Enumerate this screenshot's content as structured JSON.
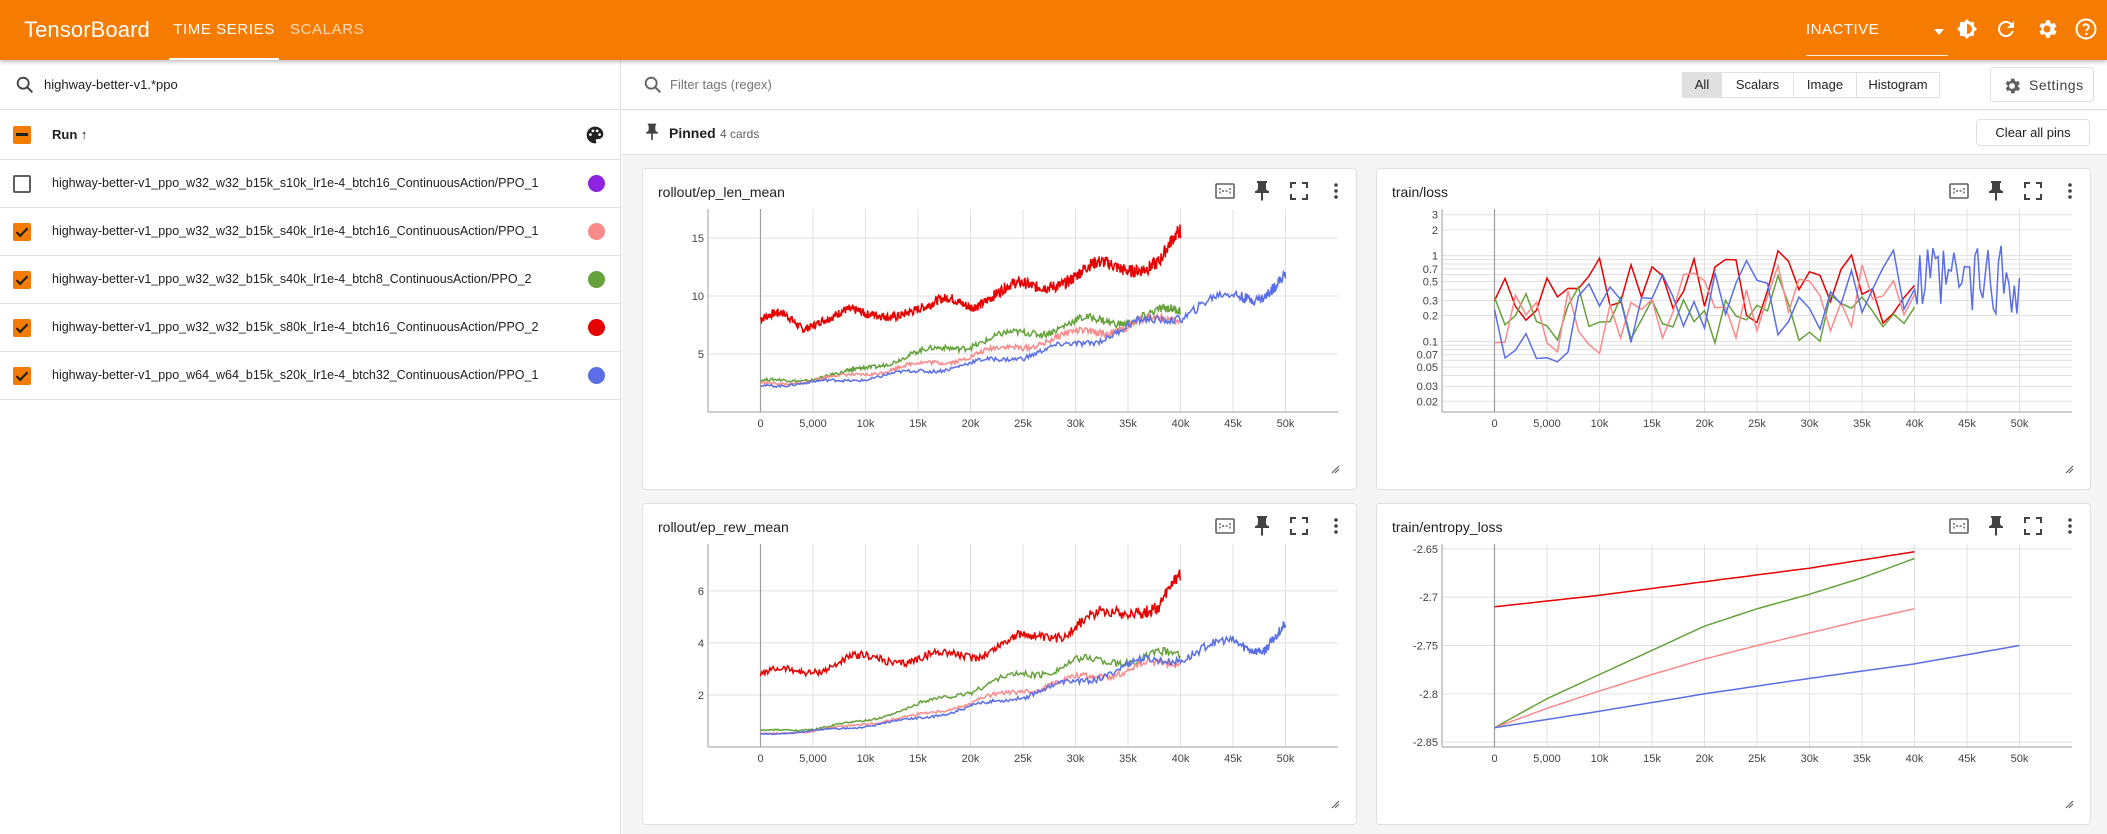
{
  "app": {
    "title": "TensorBoard"
  },
  "nav": {
    "tabs": [
      {
        "label": "TIME SERIES",
        "active": true
      },
      {
        "label": "SCALARS",
        "active": false
      }
    ]
  },
  "topbar": {
    "status_label": "INACTIVE",
    "icons": [
      "dark-mode-icon",
      "refresh-icon",
      "settings-gear-icon",
      "help-icon"
    ]
  },
  "runs_panel": {
    "filter_value": "highway-better-v1.*ppo",
    "header_label": "Run ↑",
    "runs": [
      {
        "name": "highway-better-v1_ppo_w32_w32_b15k_s10k_lr1e-4_btch16_ContinuousAction/PPO_1",
        "checked": false,
        "color": "#8e24e0"
      },
      {
        "name": "highway-better-v1_ppo_w32_w32_b15k_s40k_lr1e-4_btch16_ContinuousAction/PPO_1",
        "checked": true,
        "color": "#f88a8a"
      },
      {
        "name": "highway-better-v1_ppo_w32_w32_b15k_s40k_lr1e-4_btch8_ContinuousAction/PPO_2",
        "checked": true,
        "color": "#66a23c"
      },
      {
        "name": "highway-better-v1_ppo_w32_w32_b15k_s80k_lr1e-4_btch16_ContinuousAction/PPO_2",
        "checked": true,
        "color": "#e60000"
      },
      {
        "name": "highway-better-v1_ppo_w64_w64_b15k_s20k_lr1e-4_btch32_ContinuousAction/PPO_1",
        "checked": true,
        "color": "#5a6ee6"
      }
    ]
  },
  "filter": {
    "placeholder": "Filter tags (regex)",
    "types": [
      "All",
      "Scalars",
      "Image",
      "Histogram"
    ],
    "selected": "All",
    "settings_label": "Settings"
  },
  "pinned": {
    "title": "Pinned",
    "count_label": "4 cards",
    "clear_label": "Clear all pins"
  },
  "chart_data": [
    {
      "type": "line",
      "title": "rollout/ep_len_mean",
      "x_ticks": [
        "0",
        "5,000",
        "10k",
        "15k",
        "20k",
        "25k",
        "30k",
        "35k",
        "40k",
        "45k",
        "50k"
      ],
      "y_ticks": [
        "5",
        "10",
        "15"
      ],
      "ylim": [
        0,
        17.5
      ],
      "xlim": [
        -5000,
        55000
      ],
      "grid": true,
      "series": [
        {
          "color": "#e60000",
          "points": [
            [
              0,
              8
            ],
            [
              2000,
              8.1
            ],
            [
              4000,
              7.2
            ],
            [
              6000,
              8.4
            ],
            [
              8000,
              8.6
            ],
            [
              10000,
              8
            ],
            [
              12000,
              8.5
            ],
            [
              14000,
              9
            ],
            [
              16000,
              8.8
            ],
            [
              18000,
              9.5
            ],
            [
              20000,
              9.5
            ],
            [
              22000,
              10.2
            ],
            [
              24000,
              10.5
            ],
            [
              26000,
              10.6
            ],
            [
              28000,
              11.5
            ],
            [
              30000,
              11.8
            ],
            [
              32000,
              12.2
            ],
            [
              34000,
              12.5
            ],
            [
              36000,
              13
            ],
            [
              38000,
              12.8
            ],
            [
              40000,
              15
            ]
          ]
        },
        {
          "color": "#66a23c",
          "points": [
            [
              0,
              2.6
            ],
            [
              4000,
              2.8
            ],
            [
              8000,
              3.3
            ],
            [
              10000,
              3.8
            ],
            [
              14000,
              4.8
            ],
            [
              18000,
              5.6
            ],
            [
              22000,
              6.2
            ],
            [
              26000,
              7
            ],
            [
              30000,
              7.6
            ],
            [
              34000,
              8
            ],
            [
              38000,
              8.4
            ],
            [
              40000,
              8.6
            ]
          ]
        },
        {
          "color": "#f88a8a",
          "points": [
            [
              0,
              2.4
            ],
            [
              4000,
              2.6
            ],
            [
              8000,
              3.1
            ],
            [
              12000,
              3.6
            ],
            [
              16000,
              4.2
            ],
            [
              20000,
              4.8
            ],
            [
              24000,
              5.6
            ],
            [
              28000,
              6.3
            ],
            [
              32000,
              7
            ],
            [
              36000,
              7.6
            ],
            [
              40000,
              8
            ]
          ]
        },
        {
          "color": "#5a6ee6",
          "points": [
            [
              0,
              2.3
            ],
            [
              5000,
              2.5
            ],
            [
              10000,
              2.9
            ],
            [
              15000,
              3.5
            ],
            [
              20000,
              4.1
            ],
            [
              25000,
              4.9
            ],
            [
              30000,
              5.8
            ],
            [
              35000,
              7.2
            ],
            [
              40000,
              8.5
            ],
            [
              45000,
              10
            ],
            [
              48000,
              10.4
            ],
            [
              50000,
              11.5
            ]
          ]
        }
      ]
    },
    {
      "type": "line",
      "title": "train/loss",
      "log_scale": true,
      "x_ticks": [
        "0",
        "5,000",
        "10k",
        "15k",
        "20k",
        "25k",
        "30k",
        "35k",
        "40k",
        "45k",
        "50k"
      ],
      "y_ticks": [
        "0.02",
        "0.03",
        "0.05",
        "0.07",
        "0.1",
        "0.2",
        "0.3",
        "0.5",
        "0.7",
        "1",
        "2",
        "3"
      ],
      "ylim": [
        0.015,
        3.5
      ],
      "xlim": [
        -5000,
        55000
      ],
      "grid": true,
      "series": [
        {
          "color": "#e60000",
          "points": [
            [
              0,
              0.4
            ],
            [
              40000,
              0.45
            ]
          ]
        },
        {
          "color": "#66a23c",
          "points": [
            [
              0,
              0.15
            ],
            [
              40000,
              0.25
            ]
          ]
        },
        {
          "color": "#f88a8a",
          "points": [
            [
              0,
              0.12
            ],
            [
              40000,
              0.35
            ]
          ]
        },
        {
          "color": "#5a6ee6",
          "points": [
            [
              0,
              0.1
            ],
            [
              40000,
              0.45
            ],
            [
              50000,
              0.55
            ]
          ]
        }
      ]
    },
    {
      "type": "line",
      "title": "rollout/ep_rew_mean",
      "x_ticks": [
        "0",
        "5,000",
        "10k",
        "15k",
        "20k",
        "25k",
        "30k",
        "35k",
        "40k",
        "45k",
        "50k"
      ],
      "y_ticks": [
        "2",
        "4",
        "6"
      ],
      "ylim": [
        0,
        7.8
      ],
      "xlim": [
        -5000,
        55000
      ],
      "grid": true,
      "series": [
        {
          "color": "#e60000",
          "points": [
            [
              0,
              2.8
            ],
            [
              4000,
              2.9
            ],
            [
              8000,
              3.3
            ],
            [
              12000,
              3.4
            ],
            [
              16000,
              3.4
            ],
            [
              20000,
              3.6
            ],
            [
              24000,
              4
            ],
            [
              28000,
              4.4
            ],
            [
              32000,
              4.9
            ],
            [
              36000,
              5.5
            ],
            [
              38000,
              5.3
            ],
            [
              40000,
              6.4
            ]
          ]
        },
        {
          "color": "#66a23c",
          "points": [
            [
              0,
              0.6
            ],
            [
              5000,
              0.7
            ],
            [
              10000,
              1
            ],
            [
              15000,
              1.6
            ],
            [
              20000,
              2.2
            ],
            [
              25000,
              2.8
            ],
            [
              30000,
              3.2
            ],
            [
              35000,
              3.4
            ],
            [
              40000,
              3.5
            ]
          ]
        },
        {
          "color": "#f88a8a",
          "points": [
            [
              0,
              0.5
            ],
            [
              5000,
              0.6
            ],
            [
              10000,
              0.9
            ],
            [
              15000,
              1.2
            ],
            [
              20000,
              1.7
            ],
            [
              25000,
              2.2
            ],
            [
              30000,
              2.6
            ],
            [
              35000,
              3
            ],
            [
              40000,
              3.2
            ]
          ]
        },
        {
          "color": "#5a6ee6",
          "points": [
            [
              0,
              0.5
            ],
            [
              5000,
              0.6
            ],
            [
              10000,
              0.8
            ],
            [
              15000,
              1.1
            ],
            [
              20000,
              1.5
            ],
            [
              25000,
              2
            ],
            [
              30000,
              2.5
            ],
            [
              35000,
              3.1
            ],
            [
              40000,
              3.5
            ],
            [
              45000,
              4
            ],
            [
              48000,
              3.9
            ],
            [
              50000,
              4.6
            ]
          ]
        }
      ]
    },
    {
      "type": "line",
      "title": "train/entropy_loss",
      "x_ticks": [
        "0",
        "5,000",
        "10k",
        "15k",
        "20k",
        "25k",
        "30k",
        "35k",
        "40k",
        "45k",
        "50k"
      ],
      "y_ticks": [
        "-2.85",
        "-2.8",
        "-2.75",
        "-2.7",
        "-2.65"
      ],
      "ylim": [
        -2.855,
        -2.645
      ],
      "xlim": [
        -5000,
        55000
      ],
      "grid": true,
      "series": [
        {
          "color": "#e60000",
          "points": [
            [
              0,
              -2.71
            ],
            [
              10000,
              -2.698
            ],
            [
              20000,
              -2.684
            ],
            [
              30000,
              -2.67
            ],
            [
              40000,
              -2.653
            ]
          ]
        },
        {
          "color": "#66a23c",
          "points": [
            [
              0,
              -2.835
            ],
            [
              5000,
              -2.805
            ],
            [
              10000,
              -2.78
            ],
            [
              15000,
              -2.755
            ],
            [
              20000,
              -2.73
            ],
            [
              25000,
              -2.712
            ],
            [
              30000,
              -2.697
            ],
            [
              35000,
              -2.68
            ],
            [
              40000,
              -2.66
            ]
          ]
        },
        {
          "color": "#f88a8a",
          "points": [
            [
              0,
              -2.835
            ],
            [
              5000,
              -2.815
            ],
            [
              10000,
              -2.797
            ],
            [
              15000,
              -2.78
            ],
            [
              20000,
              -2.764
            ],
            [
              25000,
              -2.75
            ],
            [
              30000,
              -2.737
            ],
            [
              35000,
              -2.724
            ],
            [
              40000,
              -2.712
            ]
          ]
        },
        {
          "color": "#5a6ee6",
          "points": [
            [
              0,
              -2.835
            ],
            [
              10000,
              -2.818
            ],
            [
              20000,
              -2.8
            ],
            [
              30000,
              -2.784
            ],
            [
              40000,
              -2.769
            ],
            [
              50000,
              -2.75
            ]
          ]
        }
      ]
    }
  ]
}
